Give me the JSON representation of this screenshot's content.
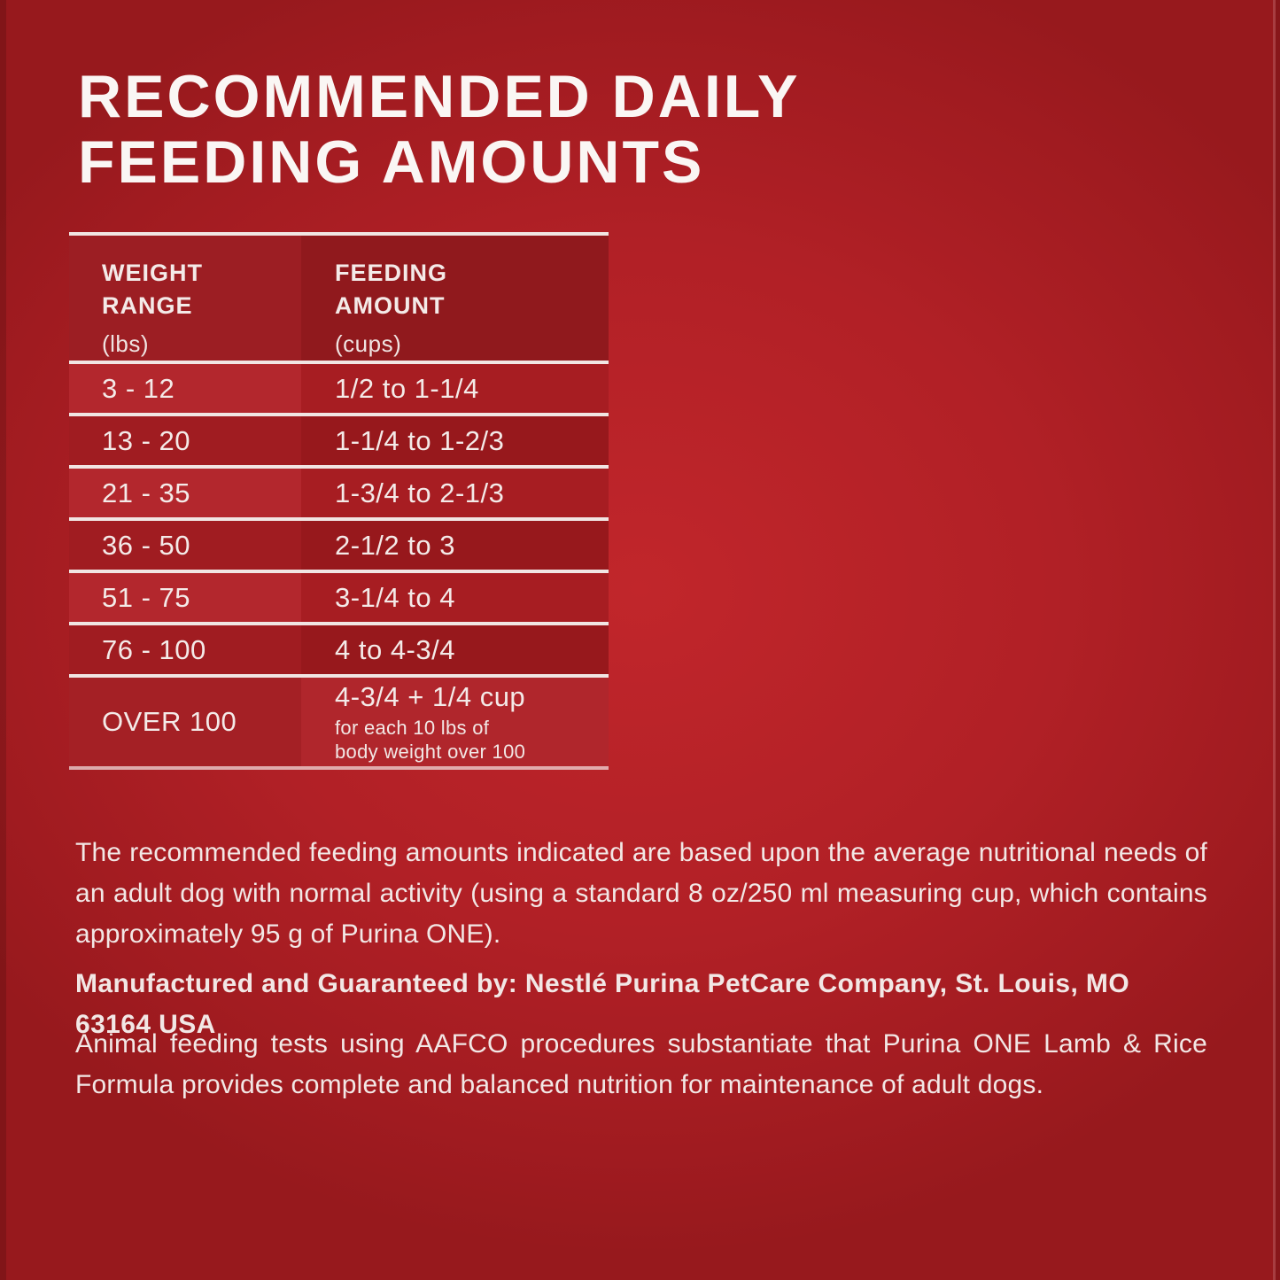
{
  "panel": {
    "title": "RECOMMENDED DAILY\nFEEDING AMOUNTS"
  },
  "table": {
    "headers": [
      {
        "title": "WEIGHT\nRANGE",
        "unit": "(lbs)"
      },
      {
        "title": "FEEDING\nAMOUNT",
        "unit": "(cups)"
      }
    ],
    "rows": [
      {
        "weight": "3 - 12",
        "amount": "1/2 to 1-1/4"
      },
      {
        "weight": "13 - 20",
        "amount": "1-1/4 to 1-2/3"
      },
      {
        "weight": "21 - 35",
        "amount": "1-3/4 to 2-1/3"
      },
      {
        "weight": "36 - 50",
        "amount": "2-1/2 to 3"
      },
      {
        "weight": "51 - 75",
        "amount": "3-1/4 to 4"
      },
      {
        "weight": "76 - 100",
        "amount": "4 to 4-3/4"
      },
      {
        "weight": "OVER 100",
        "amount": "4-3/4 + 1/4 cup",
        "amount_note_line1": "for each 10 lbs of",
        "amount_note_line2": "body weight over 100"
      }
    ]
  },
  "paragraphs": {
    "feeding_basis": "The recommended feeding amounts indicated are based upon the average nutritional needs of an adult dog with normal activity (using a standard 8 oz/250 ml measuring cup, which contains approximately 95 g of Purina ONE).",
    "manufacturer": "Manufactured and Guaranteed by: Nestlé Purina PetCare Company, St. Louis, MO 63164 USA",
    "aafco": "Animal feeding tests using AAFCO procedures substantiate that Purina ONE Lamb & Rice Formula provides complete and balanced nutrition for maintenance of adult dogs."
  },
  "colors": {
    "background_red": "#b12026",
    "background_center": "#c1262b",
    "background_edge": "#97191d",
    "row_light": "#b3272d",
    "row_dark": "#9c1b20",
    "header_row": "#951b1f",
    "separator_line": "#f1e5e3",
    "text_white": "#f4eae8"
  }
}
